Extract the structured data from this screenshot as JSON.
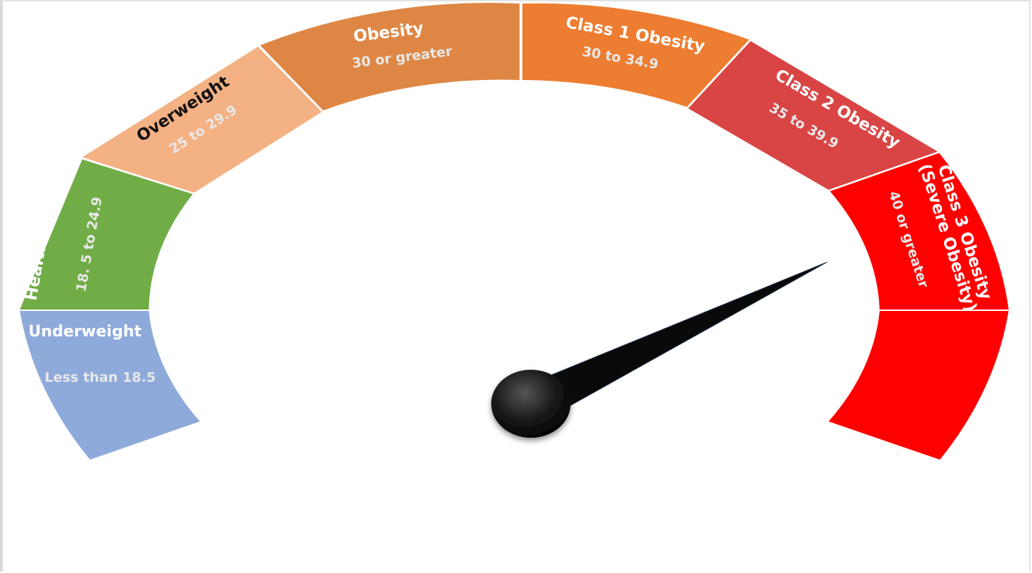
{
  "segments": {
    "underweight": {
      "title": "Underweight",
      "range": "Less than 18.5",
      "color": "#8eaadb"
    },
    "healthy": {
      "title": "Health Weight",
      "range": "18. 5 to 24.9",
      "color": "#70ad47"
    },
    "overweight": {
      "title": "Overweight",
      "range": "25 to 29.9",
      "color": "#f4b183"
    },
    "obesity": {
      "title": "Obesity",
      "range": "30 or greater",
      "color": "#de8745"
    },
    "class1": {
      "title": "Class 1 Obesity",
      "range": "30 to 34.9",
      "color": "#ed7d31"
    },
    "class2": {
      "title": "Class 2 Obesity",
      "range": "35 to 39.9",
      "color": "#d94545"
    },
    "class3": {
      "title_line1": "Class 3 Obesity",
      "title_line2": "(Severe Obesity)",
      "range": "40 or greater",
      "color": "#ff0000"
    }
  },
  "needle": {
    "color": "#0a0a0a",
    "pointing_to": "Class 3 Obesity"
  },
  "colors": {
    "light_text": "#e8e8e8",
    "dark_text": "#111111",
    "white_text": "#ffffff"
  }
}
